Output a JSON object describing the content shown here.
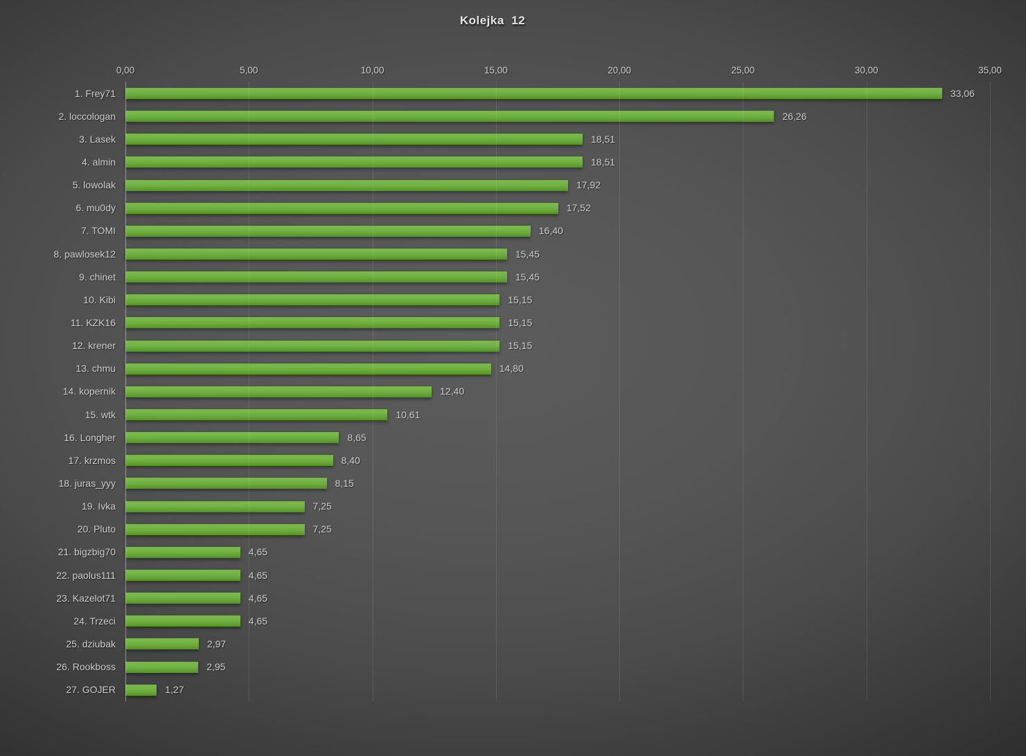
{
  "chart_data": {
    "type": "bar",
    "orientation": "horizontal",
    "title": "Kolejka  12",
    "categories": [
      "1. Frey71",
      "2. loccologan",
      "3. Lasek",
      "4. almin",
      "5. lowolak",
      "6. mu0dy",
      "7. TOMI",
      "8. pawlosek12",
      "9. chinet",
      "10. Kibi",
      "11. KZK16",
      "12. krener",
      "13. chmu",
      "14. kopernik",
      "15. wtk",
      "16. Longher",
      "17. krzmos",
      "18. juras_yyy",
      "19. Ivka",
      "20. Pluto",
      "21. bigzbig70",
      "22. paolus111",
      "23. Kazelot71",
      "24. Trzeci",
      "25. dziubak",
      "26. Rookboss",
      "27. GOJER"
    ],
    "values": [
      33.06,
      26.26,
      18.51,
      18.51,
      17.92,
      17.52,
      16.4,
      15.45,
      15.45,
      15.15,
      15.15,
      15.15,
      14.8,
      12.4,
      10.61,
      8.65,
      8.4,
      8.15,
      7.25,
      7.25,
      4.65,
      4.65,
      4.65,
      4.65,
      2.97,
      2.95,
      1.27
    ],
    "value_labels": [
      "33,06",
      "26,26",
      "18,51",
      "18,51",
      "17,92",
      "17,52",
      "16,40",
      "15,45",
      "15,45",
      "15,15",
      "15,15",
      "15,15",
      "14,80",
      "12,40",
      "10,61",
      "8,65",
      "8,40",
      "8,15",
      "7,25",
      "7,25",
      "4,65",
      "4,65",
      "4,65",
      "4,65",
      "2,97",
      "2,95",
      "1,27"
    ],
    "x_axis": {
      "min": 0,
      "max": 35,
      "step": 5,
      "tick_labels": [
        "0,00",
        "5,00",
        "10,00",
        "15,00",
        "20,00",
        "25,00",
        "30,00",
        "35,00"
      ]
    },
    "xlabel": "",
    "ylabel": "",
    "grid": "vertical-gridlines-on",
    "legend": "none",
    "colors": {
      "bar_top": "#79b94c",
      "bar_bottom": "#55902a",
      "text": "#cdcdcd",
      "title_text": "#e4e4e4",
      "background_center": "#5c5c5c",
      "background_edge": "#262626",
      "gridline": "rgba(255,255,255,0.10)",
      "axis_line": "rgba(200,200,200,0.60)"
    }
  }
}
